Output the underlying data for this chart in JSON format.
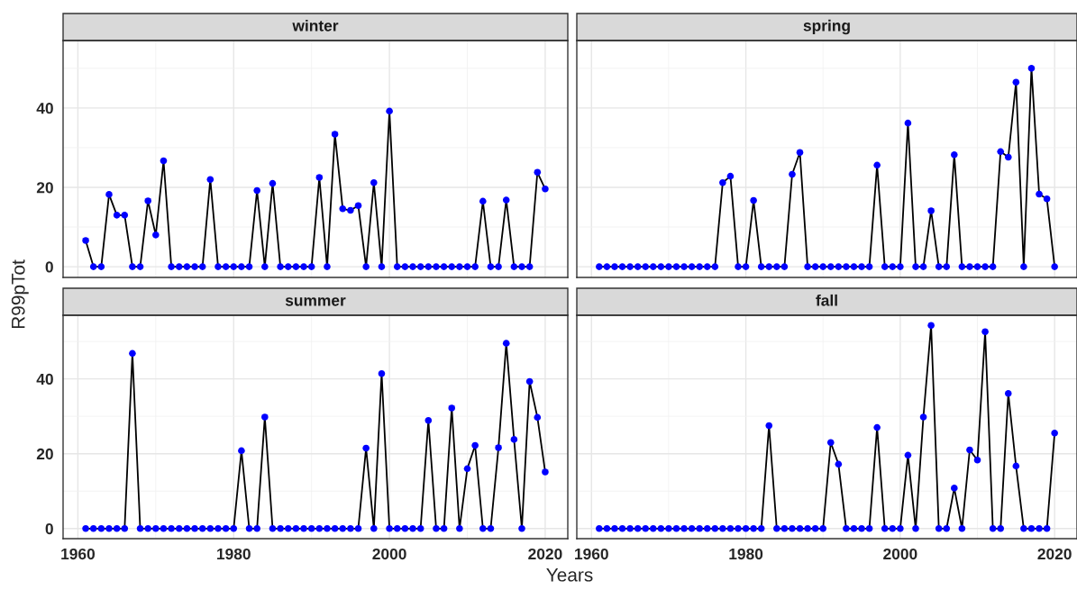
{
  "chart_data": [
    {
      "type": "line",
      "title": "winter",
      "ylabel": "R99pTot",
      "x": [
        1961,
        1962,
        1963,
        1964,
        1965,
        1966,
        1967,
        1968,
        1969,
        1970,
        1971,
        1972,
        1973,
        1974,
        1975,
        1976,
        1977,
        1978,
        1979,
        1980,
        1981,
        1982,
        1983,
        1984,
        1985,
        1986,
        1987,
        1988,
        1989,
        1990,
        1991,
        1992,
        1993,
        1994,
        1995,
        1996,
        1997,
        1998,
        1999,
        2000,
        2001,
        2002,
        2003,
        2004,
        2005,
        2006,
        2007,
        2008,
        2009,
        2010,
        2011,
        2012,
        2013,
        2014,
        2015,
        2016,
        2017,
        2018,
        2019,
        2020
      ],
      "series": [
        {
          "color": "#0000ff",
          "values": [
            6.6,
            0,
            0,
            18.2,
            13,
            13,
            0,
            0,
            16.6,
            8,
            26.7,
            0,
            0,
            0,
            0,
            0,
            22,
            0,
            0,
            0,
            0,
            0,
            19.2,
            0,
            21,
            0,
            0,
            0,
            0,
            0,
            22.5,
            0,
            33.4,
            14.6,
            14.2,
            15.4,
            0,
            21.2,
            0,
            39.2,
            0,
            0,
            0,
            0,
            0,
            0,
            0,
            0,
            0,
            0,
            0,
            16.5,
            0,
            0,
            16.8,
            0,
            0,
            0,
            23.8,
            19.6
          ]
        }
      ],
      "xlim": [
        1958.1,
        2022.9
      ],
      "ylim": [
        -2.7,
        57
      ],
      "xticks": [
        1960,
        1980,
        2000,
        2020
      ],
      "yticks": [
        0,
        20,
        40
      ],
      "grid": true,
      "marker": "circle",
      "line_style": "solid",
      "tick_labels": "y"
    },
    {
      "type": "line",
      "title": "spring",
      "x": [
        1961,
        1962,
        1963,
        1964,
        1965,
        1966,
        1967,
        1968,
        1969,
        1970,
        1971,
        1972,
        1973,
        1974,
        1975,
        1976,
        1977,
        1978,
        1979,
        1980,
        1981,
        1982,
        1983,
        1984,
        1985,
        1986,
        1987,
        1988,
        1989,
        1990,
        1991,
        1992,
        1993,
        1994,
        1995,
        1996,
        1997,
        1998,
        1999,
        2000,
        2001,
        2002,
        2003,
        2004,
        2005,
        2006,
        2007,
        2008,
        2009,
        2010,
        2011,
        2012,
        2013,
        2014,
        2015,
        2016,
        2017,
        2018,
        2019,
        2020
      ],
      "series": [
        {
          "color": "#0000ff",
          "values": [
            0,
            0,
            0,
            0,
            0,
            0,
            0,
            0,
            0,
            0,
            0,
            0,
            0,
            0,
            0,
            0,
            21.2,
            22.8,
            0,
            0,
            16.7,
            0,
            0,
            0,
            0,
            23.3,
            28.8,
            0,
            0,
            0,
            0,
            0,
            0,
            0,
            0,
            0,
            25.6,
            0,
            0,
            0,
            36.2,
            0,
            0,
            14.1,
            0,
            0,
            28.2,
            0,
            0,
            0,
            0,
            0,
            29,
            27.6,
            46.5,
            0,
            50,
            18.3,
            17.1,
            0
          ]
        }
      ],
      "xlim": [
        1958.1,
        2022.9
      ],
      "ylim": [
        -2.7,
        57
      ],
      "xticks": [
        1960,
        1980,
        2000,
        2020
      ],
      "yticks": [
        0,
        20,
        40
      ],
      "grid": true,
      "marker": "circle",
      "line_style": "solid",
      "tick_labels": false
    },
    {
      "type": "line",
      "title": "summer",
      "xlabel": "Years",
      "x": [
        1961,
        1962,
        1963,
        1964,
        1965,
        1966,
        1967,
        1968,
        1969,
        1970,
        1971,
        1972,
        1973,
        1974,
        1975,
        1976,
        1977,
        1978,
        1979,
        1980,
        1981,
        1982,
        1983,
        1984,
        1985,
        1986,
        1987,
        1988,
        1989,
        1990,
        1991,
        1992,
        1993,
        1994,
        1995,
        1996,
        1997,
        1998,
        1999,
        2000,
        2001,
        2002,
        2003,
        2004,
        2005,
        2006,
        2007,
        2008,
        2009,
        2010,
        2011,
        2012,
        2013,
        2014,
        2015,
        2016,
        2017,
        2018,
        2019,
        2020
      ],
      "series": [
        {
          "color": "#0000ff",
          "values": [
            0,
            0,
            0,
            0,
            0,
            0,
            46.8,
            0,
            0,
            0,
            0,
            0,
            0,
            0,
            0,
            0,
            0,
            0,
            0,
            0,
            20.8,
            0,
            0,
            29.8,
            0,
            0,
            0,
            0,
            0,
            0,
            0,
            0,
            0,
            0,
            0,
            0,
            21.5,
            0,
            41.4,
            0,
            0,
            0,
            0,
            0,
            28.9,
            0,
            0,
            32.2,
            0,
            16,
            22.2,
            0,
            0,
            21.6,
            49.5,
            23.8,
            0,
            39.3,
            29.7,
            15.1
          ]
        }
      ],
      "xlim": [
        1958.1,
        2022.9
      ],
      "ylim": [
        -2.7,
        57
      ],
      "xticks": [
        1960,
        1980,
        2000,
        2020
      ],
      "yticks": [
        0,
        20,
        40
      ],
      "grid": true,
      "marker": "circle",
      "line_style": "solid"
    },
    {
      "type": "line",
      "title": "fall",
      "x": [
        1961,
        1962,
        1963,
        1964,
        1965,
        1966,
        1967,
        1968,
        1969,
        1970,
        1971,
        1972,
        1973,
        1974,
        1975,
        1976,
        1977,
        1978,
        1979,
        1980,
        1981,
        1982,
        1983,
        1984,
        1985,
        1986,
        1987,
        1988,
        1989,
        1990,
        1991,
        1992,
        1993,
        1994,
        1995,
        1996,
        1997,
        1998,
        1999,
        2000,
        2001,
        2002,
        2003,
        2004,
        2005,
        2006,
        2007,
        2008,
        2009,
        2010,
        2011,
        2012,
        2013,
        2014,
        2015,
        2016,
        2017,
        2018,
        2019,
        2020
      ],
      "series": [
        {
          "color": "#0000ff",
          "values": [
            0,
            0,
            0,
            0,
            0,
            0,
            0,
            0,
            0,
            0,
            0,
            0,
            0,
            0,
            0,
            0,
            0,
            0,
            0,
            0,
            0,
            0,
            27.5,
            0,
            0,
            0,
            0,
            0,
            0,
            0,
            23,
            17.2,
            0,
            0,
            0,
            0,
            27,
            0,
            0,
            0,
            19.6,
            0,
            29.8,
            54.3,
            0,
            0,
            10.8,
            0,
            21,
            18.3,
            52.6,
            0,
            0,
            36.1,
            16.7,
            0,
            0,
            0,
            0,
            25.5
          ]
        }
      ],
      "xlim": [
        1958.1,
        2022.9
      ],
      "ylim": [
        -2.7,
        57
      ],
      "xticks": [
        1960,
        1980,
        2000,
        2020
      ],
      "yticks": [
        0,
        20,
        40
      ],
      "grid": true,
      "marker": "circle",
      "line_style": "solid",
      "tick_labels": "x"
    }
  ]
}
